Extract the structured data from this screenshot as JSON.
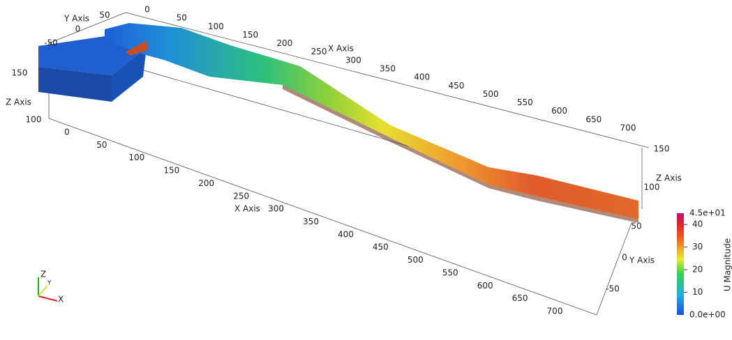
{
  "view": {
    "x_axis": {
      "label_top": "X Axis",
      "label_bottom": "X Axis",
      "ticks": [
        0,
        50,
        100,
        150,
        200,
        250,
        300,
        350,
        400,
        450,
        500,
        550,
        600,
        650,
        700
      ]
    },
    "y_axis": {
      "label_left": "Y Axis",
      "label_right": "Y Axis",
      "ticks": [
        -50,
        0,
        50
      ]
    },
    "z_axis": {
      "label_left": "Z Axis",
      "label_right": "Z Axis",
      "ticks": [
        100,
        150
      ]
    },
    "colorbar": {
      "title": "U Magnitude",
      "range": [
        0,
        45
      ],
      "max_label": "4.5e+01",
      "min_label": "0.0e+00",
      "ticks": [
        10,
        20,
        30,
        40
      ]
    },
    "orientation": {
      "x": "X",
      "y": "Y",
      "z": "Z"
    }
  }
}
